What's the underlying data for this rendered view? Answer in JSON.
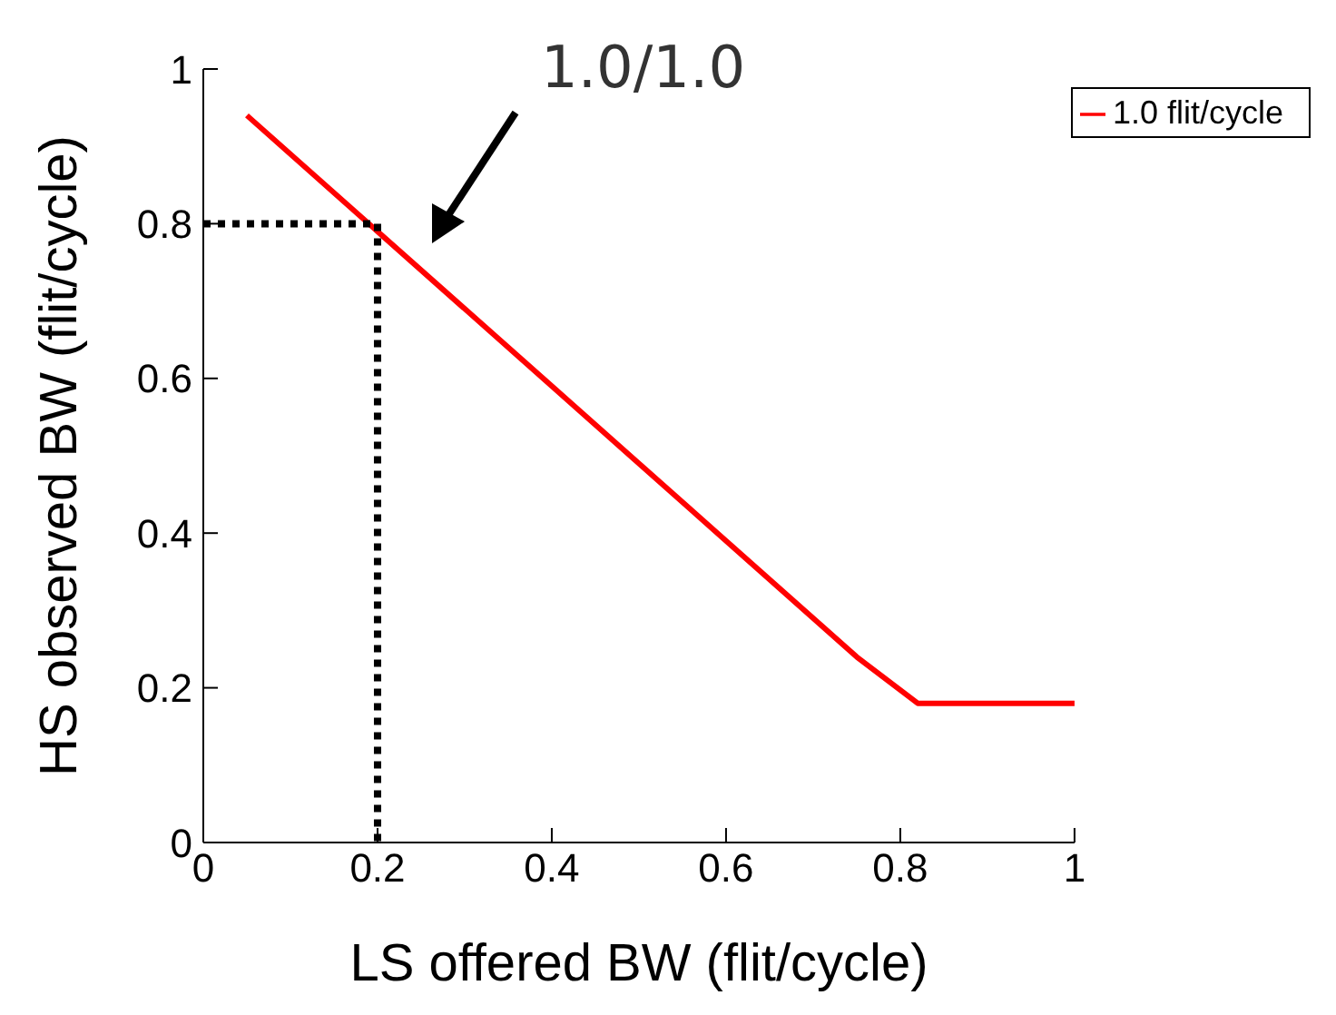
{
  "chart_data": {
    "type": "line",
    "xlabel": "LS offered BW (flit/cycle)",
    "ylabel": "HS observed BW (flit/cycle)",
    "xlim": [
      0,
      1
    ],
    "ylim": [
      0,
      1
    ],
    "xticks": [
      0,
      0.2,
      0.4,
      0.6,
      0.8,
      1
    ],
    "yticks": [
      0,
      0.2,
      0.4,
      0.6,
      0.8,
      1
    ],
    "legend": "top right",
    "marker": "none",
    "annotations": [
      "1.0/1.0"
    ],
    "series": [
      {
        "name": "1.0 flit/cycle",
        "color": "#ff0000",
        "x": [
          0.05,
          0.2,
          0.4,
          0.6,
          0.75,
          0.82,
          1
        ],
        "values": [
          0.94,
          0.79,
          0.59,
          0.39,
          0.24,
          0.18,
          0.18
        ],
        "line_style": "solid"
      },
      {
        "color": "#000000",
        "x": [
          0,
          0.2,
          0.2
        ],
        "values": [
          0.8,
          0.8,
          0
        ],
        "line_style": "dotted"
      }
    ]
  }
}
